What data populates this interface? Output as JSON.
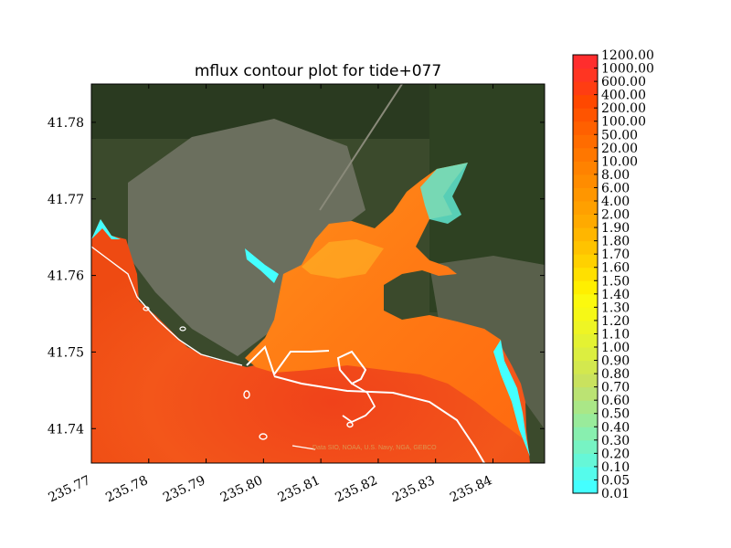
{
  "chart_data": {
    "type": "heatmap",
    "title": "mflux contour plot for tide+077",
    "xlabel": "",
    "ylabel": "",
    "xlim": [
      235.77,
      235.849
    ],
    "ylim": [
      41.7355,
      41.785
    ],
    "x_ticks": [
      "235.77",
      "235.78",
      "235.79",
      "235.80",
      "235.81",
      "235.82",
      "235.83",
      "235.84"
    ],
    "y_ticks": [
      "41.74",
      "41.75",
      "41.76",
      "41.77",
      "41.78"
    ],
    "colorbar": {
      "levels": [
        "0.01",
        "0.05",
        "0.10",
        "0.20",
        "0.30",
        "0.40",
        "0.50",
        "0.60",
        "0.70",
        "0.80",
        "0.90",
        "1.00",
        "1.10",
        "1.20",
        "1.30",
        "1.40",
        "1.50",
        "1.60",
        "1.70",
        "1.80",
        "1.90",
        "2.00",
        "4.00",
        "6.00",
        "8.00",
        "10.00",
        "20.00",
        "50.00",
        "100.00",
        "200.00",
        "400.00",
        "600.00",
        "1000.00",
        "1200.00"
      ],
      "colors": [
        "#44ffff",
        "#55fbeb",
        "#66f7d7",
        "#77f3c3",
        "#88efaf",
        "#99eb9b",
        "#aae787",
        "#bbe373",
        "#c9e25e",
        "#d3e84e",
        "#dcee40",
        "#e4f232",
        "#eef524",
        "#f6f816",
        "#fbf90e",
        "#ffef00",
        "#ffe000",
        "#ffd100",
        "#ffc300",
        "#ffb600",
        "#ffaa00",
        "#ffa000",
        "#ff9600",
        "#ff8c00",
        "#ff8200",
        "#ff7700",
        "#ff6c00",
        "#ff6000",
        "#ff5400",
        "#ff4800",
        "#ff3d12",
        "#ff3522",
        "#ff2d2d"
      ]
    },
    "basemap_attribution": "Data SIO, NOAA, U.S. Navy, NGA, GEBCO"
  }
}
